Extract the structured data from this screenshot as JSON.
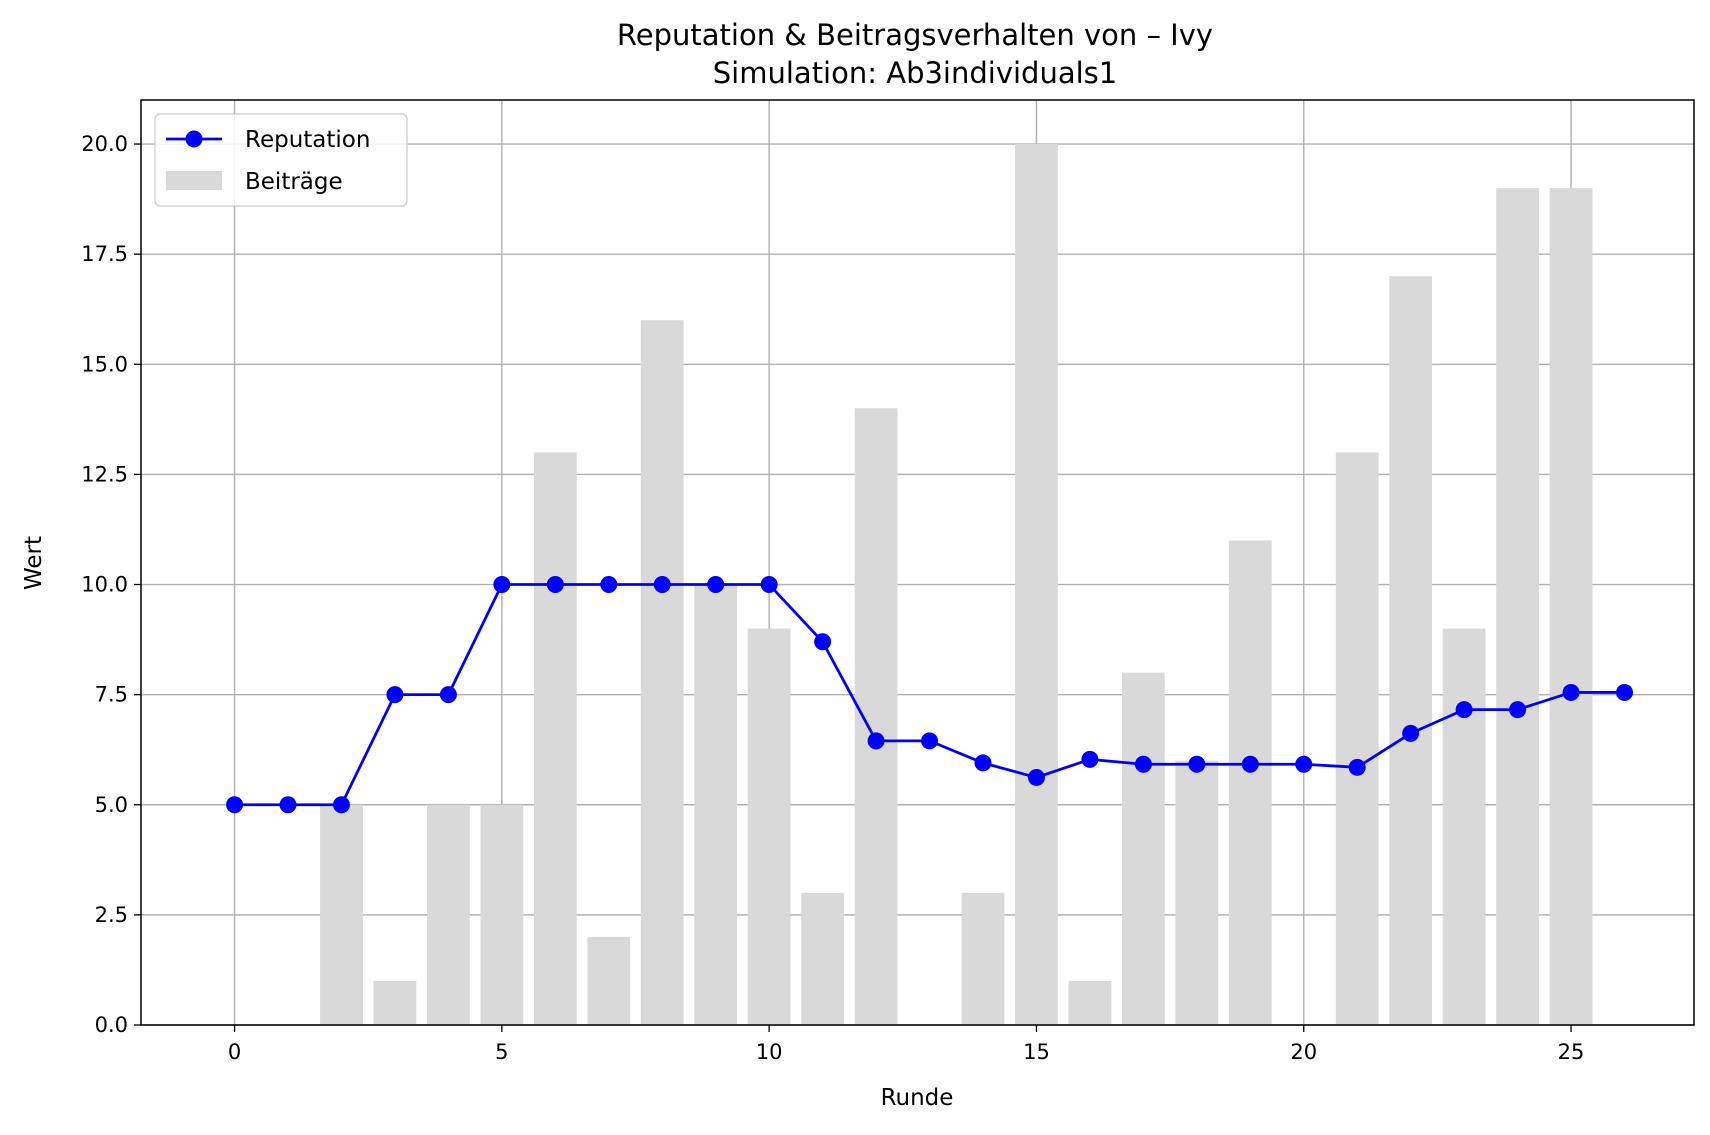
{
  "chart_data": {
    "type": "bar+line",
    "title": "Reputation & Beitragsverhalten von – Ivy",
    "subtitle": "Simulation: Ab3individuals1",
    "xlabel": "Runde",
    "ylabel": "Wert",
    "xlim": [
      -1.75,
      27.3
    ],
    "ylim": [
      0,
      21
    ],
    "x_ticks": [
      0,
      5,
      10,
      15,
      20,
      25
    ],
    "x_tick_labels": [
      "0",
      "5",
      "10",
      "15",
      "20",
      "25"
    ],
    "y_ticks": [
      0,
      2.5,
      5,
      7.5,
      10,
      12.5,
      15,
      17.5,
      20
    ],
    "y_tick_labels": [
      "0.0",
      "2.5",
      "5.0",
      "7.5",
      "10.0",
      "12.5",
      "15.0",
      "17.5",
      "20.0"
    ],
    "grid": true,
    "legend_position": "top-left",
    "legend": [
      {
        "label": "Reputation",
        "kind": "line-marker",
        "color": "#0000ff"
      },
      {
        "label": "Beiträge",
        "kind": "bar",
        "color": "#d9d9d9"
      }
    ],
    "series": [
      {
        "name": "Beiträge",
        "kind": "bar",
        "color": "#d9d9d9",
        "x": [
          0,
          1,
          2,
          3,
          4,
          5,
          6,
          7,
          8,
          9,
          10,
          11,
          12,
          13,
          14,
          15,
          16,
          17,
          18,
          19,
          20,
          21,
          22,
          23,
          24,
          25,
          26
        ],
        "values": [
          0,
          0,
          5,
          1,
          5,
          5,
          13,
          2,
          16,
          10,
          9,
          3,
          14,
          0,
          3,
          20,
          1,
          8,
          6,
          11,
          0,
          13,
          17,
          9,
          19,
          19,
          0
        ]
      },
      {
        "name": "Reputation",
        "kind": "line",
        "color": "#0000ff",
        "x": [
          0,
          1,
          2,
          3,
          4,
          5,
          6,
          7,
          8,
          9,
          10,
          11,
          12,
          13,
          14,
          15,
          16,
          17,
          18,
          19,
          20,
          21,
          22,
          23,
          24,
          25,
          26
        ],
        "values": [
          5,
          5,
          5,
          7.5,
          7.5,
          10,
          10,
          10,
          10,
          10,
          10,
          8.7,
          6.45,
          6.45,
          5.95,
          5.62,
          6.03,
          5.92,
          5.92,
          5.92,
          5.92,
          5.85,
          6.62,
          7.16,
          7.16,
          7.55,
          7.55
        ]
      }
    ]
  }
}
